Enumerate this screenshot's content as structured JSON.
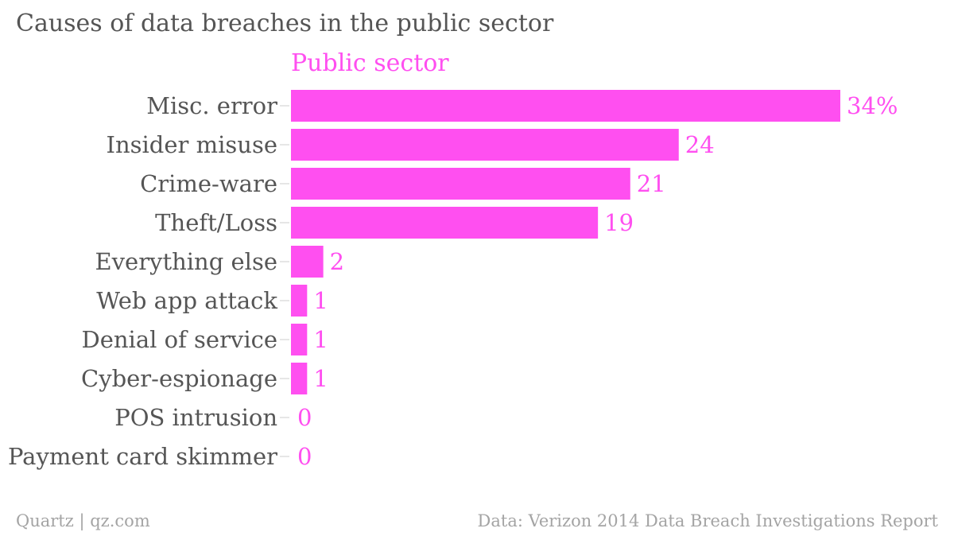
{
  "title": "Causes of data breaches in the public sector",
  "footer": {
    "source_left": "Quartz | qz.com",
    "source_right": "Data: Verizon 2014 Data Breach Investigations Report"
  },
  "chart_data": {
    "type": "bar",
    "orientation": "horizontal",
    "title": "Causes of data breaches in the public sector",
    "categories": [
      "Misc. error",
      "Insider misuse",
      "Crime-ware",
      "Theft/Loss",
      "Everything else",
      "Web app attack",
      "Denial of service",
      "Cyber-espionage",
      "POS intrusion",
      "Payment card skimmer"
    ],
    "series": [
      {
        "name": "Public sector",
        "values": [
          34,
          24,
          21,
          19,
          2,
          1,
          1,
          1,
          0,
          0
        ],
        "value_labels": [
          "34%",
          "24",
          "21",
          "19",
          "2",
          "1",
          "1",
          "1",
          "0",
          "0"
        ],
        "color": "#ff4ff0"
      }
    ],
    "xlim": [
      0,
      34
    ],
    "grid": false,
    "legend": "top"
  }
}
